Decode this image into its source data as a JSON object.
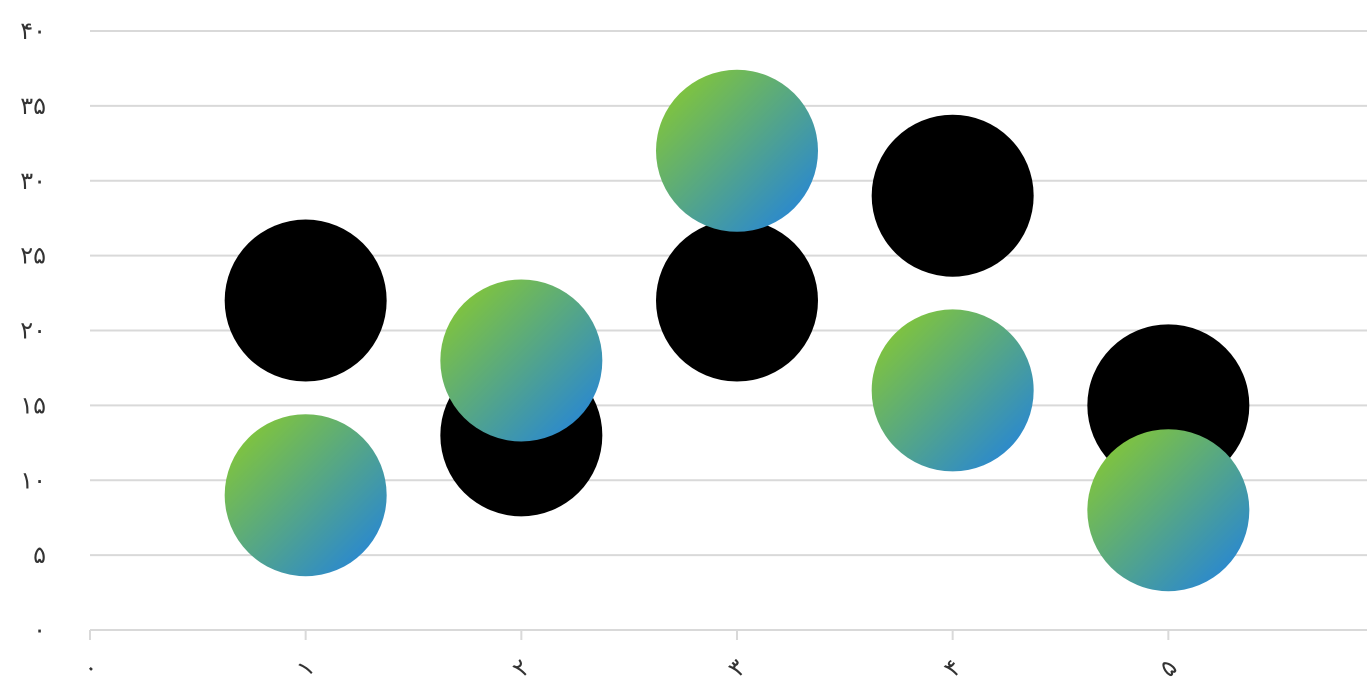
{
  "chart_data": {
    "type": "bubble",
    "title": "",
    "xlabel": "",
    "ylabel": "",
    "x_ticks": [
      "۰",
      "۱",
      "۲",
      "۳",
      "۴",
      "۵"
    ],
    "y_ticks": [
      "۰",
      "۵",
      "۱۰",
      "۱۵",
      "۲۰",
      "۲۵",
      "۳۰",
      "۳۵",
      "۴۰"
    ],
    "xlim": [
      0,
      6
    ],
    "ylim": [
      0,
      40
    ],
    "grid": true,
    "legend": "none",
    "series": [
      {
        "fill": "#000000",
        "points": [
          {
            "x": 1,
            "y": 22
          },
          {
            "x": 2,
            "y": 13
          },
          {
            "x": 3,
            "y": 22
          },
          {
            "x": 4,
            "y": 29
          },
          {
            "x": 5,
            "y": 15
          }
        ]
      },
      {
        "fill_gradient": [
          "#7dc242",
          "#2e8bc9"
        ],
        "points": [
          {
            "x": 1,
            "y": 9
          },
          {
            "x": 2,
            "y": 18
          },
          {
            "x": 3,
            "y": 32
          },
          {
            "x": 4,
            "y": 16
          },
          {
            "x": 5,
            "y": 8
          }
        ]
      }
    ]
  }
}
